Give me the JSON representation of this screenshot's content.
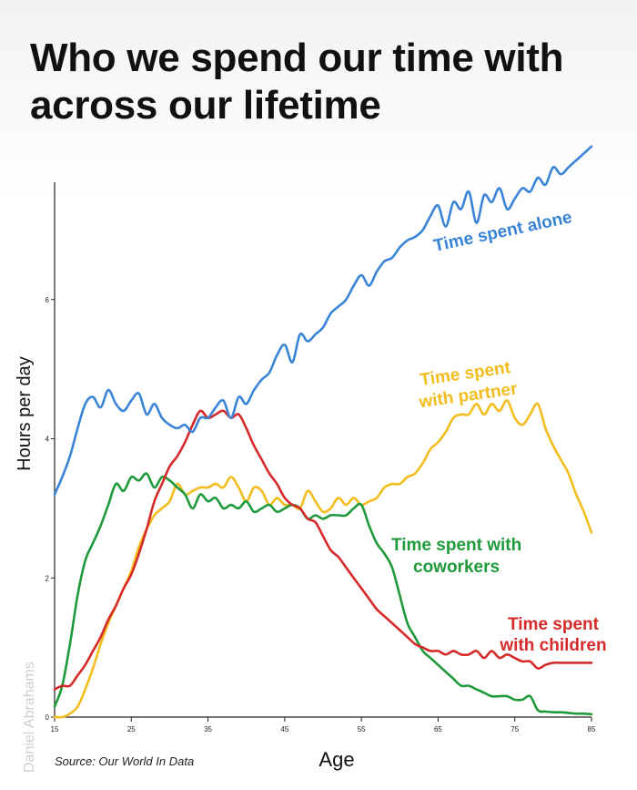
{
  "title_lines": [
    "Who we spend our time with",
    "across our lifetime"
  ],
  "source": "Source: Our World In Data",
  "watermark": "Daniel Abrahams",
  "colors": {
    "alone": "#3a84d8",
    "partner": "#f2bd1d",
    "coworkers": "#1f9a3b",
    "children": "#d62a2a",
    "axis": "#222222"
  },
  "chart_data": {
    "type": "line",
    "title": "Who we spend our time with across our lifetime",
    "xlabel": "Age",
    "ylabel": "Hours per day",
    "xlim": [
      15,
      85
    ],
    "ylim": [
      0,
      8
    ],
    "xticks": [
      15,
      25,
      35,
      45,
      55,
      65,
      75,
      85
    ],
    "yticks": [
      0,
      2,
      4,
      6
    ],
    "grid": false,
    "legend": "inline labels",
    "series": [
      {
        "key": "alone",
        "label": [
          "Time spent alone"
        ],
        "x": [
          15,
          16,
          17,
          18,
          19,
          20,
          21,
          22,
          23,
          24,
          25,
          26,
          27,
          28,
          29,
          30,
          31,
          32,
          33,
          34,
          35,
          36,
          37,
          38,
          39,
          40,
          41,
          42,
          43,
          44,
          45,
          46,
          47,
          48,
          49,
          50,
          51,
          52,
          53,
          54,
          55,
          56,
          57,
          58,
          59,
          60,
          61,
          62,
          63,
          64,
          65,
          66,
          67,
          68,
          69,
          70,
          71,
          72,
          73,
          74,
          75,
          76,
          77,
          78,
          79,
          80,
          81,
          82,
          83,
          84,
          85
        ],
        "y": [
          3.2,
          3.45,
          3.75,
          4.15,
          4.5,
          4.6,
          4.45,
          4.7,
          4.5,
          4.4,
          4.55,
          4.65,
          4.35,
          4.5,
          4.3,
          4.2,
          4.15,
          4.2,
          4.1,
          4.3,
          4.3,
          4.45,
          4.55,
          4.3,
          4.6,
          4.5,
          4.7,
          4.85,
          4.95,
          5.2,
          5.35,
          5.1,
          5.5,
          5.4,
          5.5,
          5.6,
          5.8,
          5.9,
          6.0,
          6.2,
          6.35,
          6.2,
          6.4,
          6.55,
          6.6,
          6.75,
          6.85,
          6.9,
          7.0,
          7.2,
          7.35,
          7.05,
          7.4,
          7.3,
          7.55,
          7.1,
          7.5,
          7.4,
          7.6,
          7.3,
          7.45,
          7.6,
          7.55,
          7.75,
          7.65,
          7.9,
          7.8,
          7.9,
          8.0,
          8.1,
          8.2
        ]
      },
      {
        "key": "partner",
        "label": [
          "Time spent",
          "with partner"
        ],
        "x": [
          15,
          16,
          17,
          18,
          19,
          20,
          21,
          22,
          23,
          24,
          25,
          26,
          27,
          28,
          29,
          30,
          31,
          32,
          33,
          34,
          35,
          36,
          37,
          38,
          39,
          40,
          41,
          42,
          43,
          44,
          45,
          46,
          47,
          48,
          49,
          50,
          51,
          52,
          53,
          54,
          55,
          56,
          57,
          58,
          59,
          60,
          61,
          62,
          63,
          64,
          65,
          66,
          67,
          68,
          69,
          70,
          71,
          72,
          73,
          74,
          75,
          76,
          77,
          78,
          79,
          80,
          81,
          82,
          83,
          84,
          85
        ],
        "y": [
          0,
          0,
          0.05,
          0.15,
          0.4,
          0.7,
          1.05,
          1.35,
          1.6,
          1.85,
          2.1,
          2.45,
          2.7,
          2.9,
          3.0,
          3.1,
          3.35,
          3.2,
          3.25,
          3.3,
          3.3,
          3.35,
          3.3,
          3.45,
          3.3,
          3.1,
          3.3,
          3.25,
          3.05,
          3.15,
          3.05,
          3.05,
          3.0,
          3.25,
          3.1,
          2.95,
          3.0,
          3.15,
          3.05,
          3.15,
          3.05,
          3.1,
          3.15,
          3.3,
          3.35,
          3.35,
          3.45,
          3.5,
          3.65,
          3.85,
          3.95,
          4.1,
          4.3,
          4.35,
          4.35,
          4.5,
          4.35,
          4.5,
          4.4,
          4.55,
          4.3,
          4.2,
          4.35,
          4.5,
          4.15,
          3.9,
          3.7,
          3.5,
          3.2,
          2.95,
          2.65
        ]
      },
      {
        "key": "coworkers",
        "label": [
          "Time spent with",
          "coworkers"
        ],
        "x": [
          15,
          16,
          17,
          18,
          19,
          20,
          21,
          22,
          23,
          24,
          25,
          26,
          27,
          28,
          29,
          30,
          31,
          32,
          33,
          34,
          35,
          36,
          37,
          38,
          39,
          40,
          41,
          42,
          43,
          44,
          45,
          46,
          47,
          48,
          49,
          50,
          51,
          52,
          53,
          54,
          55,
          56,
          57,
          58,
          59,
          60,
          61,
          62,
          63,
          64,
          65,
          66,
          67,
          68,
          69,
          70,
          71,
          72,
          73,
          74,
          75,
          76,
          77,
          78,
          79,
          80,
          81,
          82,
          83,
          84,
          85
        ],
        "y": [
          0.15,
          0.45,
          1.05,
          1.75,
          2.25,
          2.5,
          2.75,
          3.05,
          3.35,
          3.25,
          3.45,
          3.4,
          3.5,
          3.3,
          3.45,
          3.4,
          3.3,
          3.2,
          3.0,
          3.2,
          3.1,
          3.15,
          3.0,
          3.05,
          3.0,
          3.1,
          2.95,
          3.0,
          3.05,
          2.95,
          3.0,
          3.05,
          3.0,
          2.85,
          2.9,
          2.85,
          2.9,
          2.9,
          2.9,
          3.0,
          3.05,
          2.75,
          2.5,
          2.35,
          2.15,
          1.75,
          1.35,
          1.15,
          0.95,
          0.85,
          0.75,
          0.65,
          0.55,
          0.45,
          0.45,
          0.4,
          0.35,
          0.3,
          0.3,
          0.3,
          0.25,
          0.25,
          0.3,
          0.1,
          0.08,
          0.07,
          0.07,
          0.06,
          0.05,
          0.05,
          0.04
        ]
      },
      {
        "key": "children",
        "label": [
          "Time spent",
          "with children"
        ],
        "x": [
          15,
          16,
          17,
          18,
          19,
          20,
          21,
          22,
          23,
          24,
          25,
          26,
          27,
          28,
          29,
          30,
          31,
          32,
          33,
          34,
          35,
          36,
          37,
          38,
          39,
          40,
          41,
          42,
          43,
          44,
          45,
          46,
          47,
          48,
          49,
          50,
          51,
          52,
          53,
          54,
          55,
          56,
          57,
          58,
          59,
          60,
          61,
          62,
          63,
          64,
          65,
          66,
          67,
          68,
          69,
          70,
          71,
          72,
          73,
          74,
          75,
          76,
          77,
          78,
          79,
          80,
          81,
          82,
          83,
          84,
          85
        ],
        "y": [
          0.4,
          0.45,
          0.45,
          0.6,
          0.75,
          0.95,
          1.15,
          1.4,
          1.6,
          1.85,
          2.05,
          2.35,
          2.7,
          3.1,
          3.35,
          3.6,
          3.75,
          3.95,
          4.2,
          4.4,
          4.3,
          4.35,
          4.4,
          4.3,
          4.35,
          4.15,
          3.9,
          3.7,
          3.5,
          3.35,
          3.15,
          3.05,
          3.0,
          2.85,
          2.8,
          2.6,
          2.4,
          2.3,
          2.15,
          2.0,
          1.85,
          1.7,
          1.55,
          1.45,
          1.35,
          1.25,
          1.15,
          1.05,
          1.0,
          0.95,
          0.95,
          0.9,
          0.95,
          0.9,
          0.9,
          0.95,
          0.85,
          0.95,
          0.85,
          0.9,
          0.85,
          0.8,
          0.8,
          0.7,
          0.75,
          0.78,
          0.78,
          0.78,
          0.78,
          0.78,
          0.78
        ]
      }
    ]
  }
}
